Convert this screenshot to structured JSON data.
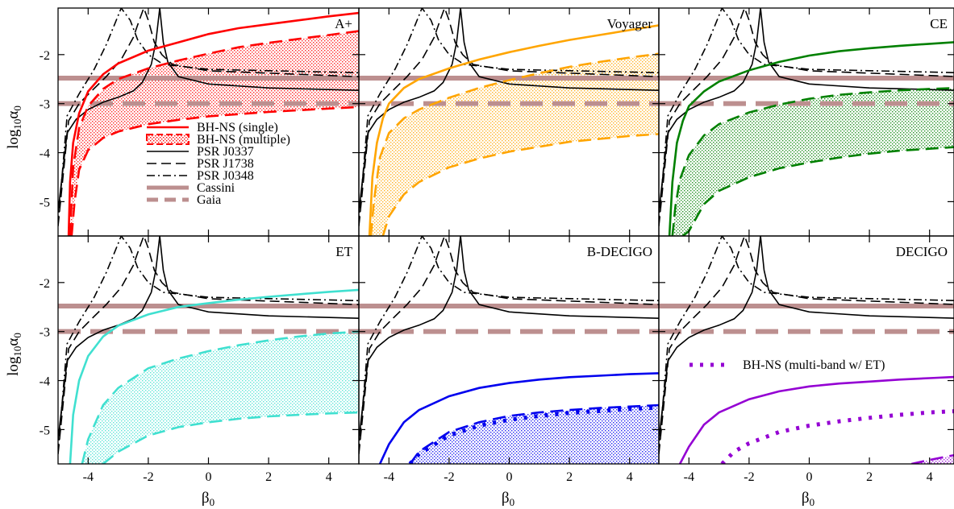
{
  "chart_data": {
    "type": "line",
    "layout": "2x3 panel grid, shared axes",
    "xlabel": "β",
    "xlabel_sub": "0",
    "ylabel": "log",
    "ylabel_sub1": "10",
    "ylabel_greek": "α",
    "ylabel_sub2": "0",
    "xlim": [
      -5,
      5
    ],
    "ylim": [
      -5.7,
      -1.05
    ],
    "xticks": [
      -4,
      -2,
      0,
      2,
      4
    ],
    "xtick_labels": [
      "-4",
      "-2",
      "0",
      "2",
      "4"
    ],
    "yticks": [
      -2,
      -3,
      -4,
      -5
    ],
    "ytick_labels": [
      "-2",
      "-3",
      "-4",
      "-5"
    ],
    "reference_constraints": {
      "pulsars": [
        {
          "name": "PSR J0337",
          "style": "solid",
          "color": "#000000",
          "floor": -2.73,
          "pole": -1.62,
          "alpha_at_beta": [
            [
              -5,
              -5.2
            ],
            [
              -4.7,
              -3.6
            ],
            [
              -4.4,
              -3.32
            ],
            [
              -4,
              -3.12
            ],
            [
              -3.5,
              -2.97
            ],
            [
              -3,
              -2.87
            ],
            [
              -2.5,
              -2.74
            ],
            [
              -2.2,
              -2.57
            ],
            [
              -1.9,
              -2.2
            ],
            [
              -1.75,
              -1.75
            ],
            [
              -1.62,
              -1.05
            ],
            [
              -1.5,
              -1.75
            ],
            [
              -1.35,
              -2.15
            ],
            [
              -1,
              -2.45
            ],
            [
              0,
              -2.6
            ],
            [
              2,
              -2.68
            ],
            [
              5,
              -2.73
            ]
          ]
        },
        {
          "name": "PSR J1738",
          "style": "dashed",
          "color": "#000000",
          "alpha_at_beta": [
            [
              -5,
              -5.5
            ],
            [
              -4.65,
              -3.35
            ],
            [
              -4.3,
              -3.0
            ],
            [
              -3.9,
              -2.75
            ],
            [
              -3.4,
              -2.45
            ],
            [
              -2.9,
              -2.1
            ],
            [
              -2.5,
              -1.65
            ],
            [
              -2.3,
              -1.3
            ],
            [
              -2.15,
              -1.05
            ],
            [
              -2.0,
              -1.3
            ],
            [
              -1.8,
              -1.75
            ],
            [
              -1.55,
              -2.0
            ],
            [
              -1.2,
              -2.2
            ],
            [
              0,
              -2.33
            ],
            [
              5,
              -2.45
            ]
          ]
        },
        {
          "name": "PSR J0348",
          "style": "dash-dot",
          "color": "#000000",
          "alpha_at_beta": [
            [
              -5,
              -5.45
            ],
            [
              -4.7,
              -3.25
            ],
            [
              -4.3,
              -2.8
            ],
            [
              -3.8,
              -2.3
            ],
            [
              -3.4,
              -1.8
            ],
            [
              -3.1,
              -1.35
            ],
            [
              -2.9,
              -1.05
            ],
            [
              -2.6,
              -1.3
            ],
            [
              -2.35,
              -1.7
            ],
            [
              -2.0,
              -2.0
            ],
            [
              -1.5,
              -2.2
            ],
            [
              0,
              -2.3
            ],
            [
              5,
              -2.37
            ]
          ]
        }
      ],
      "Cassini": {
        "log10_alpha0": -2.48,
        "color": "#bc8f8f",
        "style": "solid thick"
      },
      "Gaia": {
        "log10_alpha0": -3.0,
        "color": "#bc8f8f",
        "style": "dashed thick"
      }
    },
    "panels": [
      {
        "title": "A+",
        "color": "#ff0000",
        "single": [
          [
            -4.65,
            -5.7
          ],
          [
            -4.6,
            -4.6
          ],
          [
            -4.5,
            -3.8
          ],
          [
            -4.3,
            -3.2
          ],
          [
            -4,
            -2.75
          ],
          [
            -3.5,
            -2.4
          ],
          [
            -3,
            -2.18
          ],
          [
            -2,
            -1.92
          ],
          [
            -1,
            -1.75
          ],
          [
            0,
            -1.58
          ],
          [
            1,
            -1.46
          ],
          [
            2,
            -1.38
          ],
          [
            3,
            -1.3
          ],
          [
            4,
            -1.22
          ],
          [
            5,
            -1.15
          ]
        ],
        "multiple_upper": [
          [
            -4.6,
            -5.7
          ],
          [
            -4.5,
            -4.3
          ],
          [
            -4.3,
            -3.5
          ],
          [
            -4,
            -3.05
          ],
          [
            -3.5,
            -2.7
          ],
          [
            -3,
            -2.5
          ],
          [
            -2,
            -2.28
          ],
          [
            -1,
            -2.12
          ],
          [
            0,
            -1.98
          ],
          [
            1,
            -1.85
          ],
          [
            2,
            -1.76
          ],
          [
            3,
            -1.68
          ],
          [
            4,
            -1.6
          ],
          [
            5,
            -1.52
          ]
        ],
        "multiple_lower": [
          [
            -4.55,
            -5.7
          ],
          [
            -4.45,
            -5.0
          ],
          [
            -4.3,
            -4.35
          ],
          [
            -4,
            -3.95
          ],
          [
            -3.5,
            -3.7
          ],
          [
            -3,
            -3.57
          ],
          [
            -2,
            -3.42
          ],
          [
            -1,
            -3.33
          ],
          [
            0,
            -3.26
          ],
          [
            2,
            -3.17
          ],
          [
            4,
            -3.1
          ],
          [
            5,
            -3.07
          ]
        ],
        "legend": true
      },
      {
        "title": "Voyager",
        "color": "#ffa500",
        "single": [
          [
            -4.65,
            -5.7
          ],
          [
            -4.55,
            -4.5
          ],
          [
            -4.4,
            -3.8
          ],
          [
            -4.2,
            -3.3
          ],
          [
            -4,
            -3.0
          ],
          [
            -3.5,
            -2.68
          ],
          [
            -3,
            -2.5
          ],
          [
            -2,
            -2.28
          ],
          [
            -1,
            -2.1
          ],
          [
            0,
            -1.95
          ],
          [
            1,
            -1.82
          ],
          [
            2,
            -1.7
          ],
          [
            3,
            -1.6
          ],
          [
            4,
            -1.5
          ],
          [
            5,
            -1.4
          ]
        ],
        "multiple_upper": [
          [
            -4.6,
            -5.7
          ],
          [
            -4.5,
            -5.0
          ],
          [
            -4.3,
            -4.1
          ],
          [
            -4,
            -3.6
          ],
          [
            -3.5,
            -3.3
          ],
          [
            -3,
            -3.12
          ],
          [
            -2,
            -2.88
          ],
          [
            -1,
            -2.68
          ],
          [
            0,
            -2.52
          ],
          [
            1,
            -2.38
          ],
          [
            2,
            -2.25
          ],
          [
            3,
            -2.15
          ],
          [
            4,
            -2.06
          ],
          [
            5,
            -1.98
          ]
        ],
        "multiple_lower": [
          [
            -4.2,
            -5.7
          ],
          [
            -4,
            -5.3
          ],
          [
            -3.5,
            -4.85
          ],
          [
            -3,
            -4.6
          ],
          [
            -2,
            -4.3
          ],
          [
            -1,
            -4.12
          ],
          [
            0,
            -3.98
          ],
          [
            1,
            -3.88
          ],
          [
            2,
            -3.78
          ],
          [
            3,
            -3.72
          ],
          [
            4,
            -3.66
          ],
          [
            5,
            -3.62
          ]
        ]
      },
      {
        "title": "CE",
        "color": "#008000",
        "single": [
          [
            -4.65,
            -5.7
          ],
          [
            -4.55,
            -4.6
          ],
          [
            -4.4,
            -3.8
          ],
          [
            -4.2,
            -3.35
          ],
          [
            -4,
            -3.05
          ],
          [
            -3.5,
            -2.75
          ],
          [
            -3,
            -2.55
          ],
          [
            -2,
            -2.32
          ],
          [
            -1,
            -2.15
          ],
          [
            0,
            -2.02
          ],
          [
            1,
            -1.93
          ],
          [
            2,
            -1.87
          ],
          [
            3,
            -1.82
          ],
          [
            4,
            -1.78
          ],
          [
            5,
            -1.74
          ]
        ],
        "multiple_upper": [
          [
            -4.55,
            -5.7
          ],
          [
            -4.45,
            -5.1
          ],
          [
            -4.3,
            -4.55
          ],
          [
            -4,
            -4.05
          ],
          [
            -3.5,
            -3.65
          ],
          [
            -3,
            -3.42
          ],
          [
            -2,
            -3.18
          ],
          [
            -1,
            -3.02
          ],
          [
            0,
            -2.9
          ],
          [
            1,
            -2.82
          ],
          [
            2,
            -2.77
          ],
          [
            3,
            -2.73
          ],
          [
            4,
            -2.7
          ],
          [
            5,
            -2.68
          ]
        ],
        "multiple_lower": [
          [
            -4.2,
            -5.7
          ],
          [
            -4,
            -5.6
          ],
          [
            -3.5,
            -5.05
          ],
          [
            -3,
            -4.78
          ],
          [
            -2,
            -4.5
          ],
          [
            -1,
            -4.32
          ],
          [
            0,
            -4.2
          ],
          [
            1,
            -4.1
          ],
          [
            2,
            -4.02
          ],
          [
            3,
            -3.96
          ],
          [
            4,
            -3.92
          ],
          [
            5,
            -3.88
          ]
        ]
      },
      {
        "title": "ET",
        "color": "#40e0d0",
        "single": [
          [
            -4.6,
            -5.7
          ],
          [
            -4.5,
            -4.7
          ],
          [
            -4.3,
            -4.0
          ],
          [
            -4,
            -3.5
          ],
          [
            -3.5,
            -3.1
          ],
          [
            -3,
            -2.88
          ],
          [
            -2,
            -2.65
          ],
          [
            -1,
            -2.5
          ],
          [
            0,
            -2.42
          ],
          [
            1,
            -2.35
          ],
          [
            2,
            -2.29
          ],
          [
            3,
            -2.24
          ],
          [
            4,
            -2.19
          ],
          [
            5,
            -2.15
          ]
        ],
        "multiple_upper": [
          [
            -4.2,
            -5.7
          ],
          [
            -4,
            -5.2
          ],
          [
            -3.5,
            -4.5
          ],
          [
            -3,
            -4.15
          ],
          [
            -2,
            -3.75
          ],
          [
            -1,
            -3.55
          ],
          [
            0,
            -3.4
          ],
          [
            1,
            -3.28
          ],
          [
            2,
            -3.18
          ],
          [
            3,
            -3.1
          ],
          [
            4,
            -3.04
          ],
          [
            5,
            -3.0
          ]
        ],
        "multiple_lower": [
          [
            -3.5,
            -5.7
          ],
          [
            -3,
            -5.45
          ],
          [
            -2,
            -5.12
          ],
          [
            -1,
            -4.95
          ],
          [
            0,
            -4.85
          ],
          [
            1,
            -4.78
          ],
          [
            2,
            -4.73
          ],
          [
            3,
            -4.7
          ],
          [
            4,
            -4.67
          ],
          [
            5,
            -4.65
          ]
        ]
      },
      {
        "title": "B-DECIGO",
        "color": "#0000ee",
        "single": [
          [
            -4.3,
            -5.7
          ],
          [
            -4,
            -5.3
          ],
          [
            -3.5,
            -4.85
          ],
          [
            -3,
            -4.6
          ],
          [
            -2,
            -4.32
          ],
          [
            -1,
            -4.15
          ],
          [
            0,
            -4.05
          ],
          [
            1,
            -3.98
          ],
          [
            2,
            -3.93
          ],
          [
            3,
            -3.9
          ],
          [
            4,
            -3.87
          ],
          [
            5,
            -3.85
          ]
        ],
        "multiple_upper": [
          [
            -3.3,
            -5.7
          ],
          [
            -3,
            -5.45
          ],
          [
            -2,
            -5.05
          ],
          [
            -1,
            -4.85
          ],
          [
            0,
            -4.72
          ],
          [
            1,
            -4.65
          ],
          [
            2,
            -4.6
          ],
          [
            3,
            -4.56
          ],
          [
            4,
            -4.53
          ],
          [
            5,
            -4.5
          ]
        ],
        "multiband": [
          [
            -3.3,
            -5.7
          ],
          [
            -3,
            -5.5
          ],
          [
            -2,
            -5.12
          ],
          [
            -1,
            -4.92
          ],
          [
            0,
            -4.8
          ],
          [
            1,
            -4.72
          ],
          [
            2,
            -4.66
          ],
          [
            3,
            -4.62
          ],
          [
            4,
            -4.58
          ],
          [
            5,
            -4.55
          ]
        ]
      },
      {
        "title": "DECIGO",
        "color": "#9400d3",
        "single": [
          [
            -4.3,
            -5.7
          ],
          [
            -4,
            -5.35
          ],
          [
            -3.5,
            -4.9
          ],
          [
            -3,
            -4.65
          ],
          [
            -2,
            -4.38
          ],
          [
            -1,
            -4.22
          ],
          [
            0,
            -4.12
          ],
          [
            1,
            -4.06
          ],
          [
            2,
            -4.02
          ],
          [
            3,
            -3.98
          ],
          [
            4,
            -3.95
          ],
          [
            5,
            -3.92
          ]
        ],
        "multiple_upper": [
          [
            3.4,
            -5.7
          ],
          [
            4,
            -5.62
          ],
          [
            5,
            -5.5
          ]
        ],
        "multiband": [
          [
            -2.9,
            -5.7
          ],
          [
            -2.5,
            -5.45
          ],
          [
            -2,
            -5.28
          ],
          [
            -1,
            -5.05
          ],
          [
            0,
            -4.92
          ],
          [
            1,
            -4.83
          ],
          [
            2,
            -4.76
          ],
          [
            3,
            -4.7
          ],
          [
            4,
            -4.65
          ],
          [
            5,
            -4.62
          ]
        ],
        "multiband_label": "BH-NS (multi-band w/ ET)"
      }
    ],
    "legend_entries": [
      {
        "label": "BH-NS (single)",
        "style": "solid",
        "color": "#ff0000"
      },
      {
        "label": "BH-NS (multiple)",
        "style": "dashed-hatched",
        "color": "#ff0000"
      },
      {
        "label": "PSR J0337",
        "style": "solid",
        "color": "#000000"
      },
      {
        "label": "PSR J1738",
        "style": "dashed",
        "color": "#000000"
      },
      {
        "label": "PSR J0348",
        "style": "dash-dot",
        "color": "#000000"
      },
      {
        "label": "Cassini",
        "style": "solid thick",
        "color": "#bc8f8f"
      },
      {
        "label": "Gaia",
        "style": "dashed thick",
        "color": "#bc8f8f"
      }
    ],
    "legend_position": "lower-center of A+ panel",
    "grid": false
  }
}
